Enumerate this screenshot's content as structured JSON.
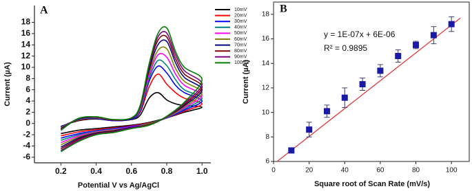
{
  "chart_data": [
    {
      "type": "line",
      "label": "A",
      "x_label": "Potential  V vs Ag/AgCl",
      "y_label": "Current (µA)",
      "x": [
        0.2,
        0.3,
        0.4,
        0.5,
        0.6,
        0.65,
        0.7,
        0.75,
        0.8,
        0.85,
        0.9,
        1.0,
        0.9,
        0.8,
        0.7,
        0.6,
        0.5,
        0.4,
        0.3,
        0.2
      ],
      "series": [
        {
          "name": "10mV",
          "color": "#000000",
          "values": [
            -0.5,
            0.5,
            0.8,
            0.5,
            0.7,
            1.5,
            4.5,
            5.5,
            4.2,
            3.5,
            3.2,
            2.9,
            2.0,
            1.0,
            0.2,
            -0.3,
            -0.6,
            -0.9,
            -1.2,
            -1.8
          ]
        },
        {
          "name": "20mV",
          "color": "#ff0000",
          "values": [
            -0.6,
            0.6,
            0.9,
            0.5,
            0.8,
            2.0,
            6.5,
            8.8,
            7.0,
            5.5,
            4.5,
            3.5,
            2.2,
            1.0,
            0.1,
            -0.4,
            -0.8,
            -1.1,
            -1.5,
            -2.2
          ]
        },
        {
          "name": "30mV",
          "color": "#0000ff",
          "values": [
            -0.6,
            0.7,
            0.9,
            0.5,
            0.8,
            2.2,
            7.5,
            10.2,
            9.0,
            6.8,
            5.5,
            4.0,
            2.4,
            1.0,
            0.0,
            -0.5,
            -0.9,
            -1.3,
            -1.8,
            -2.6
          ]
        },
        {
          "name": "40mV",
          "color": "#008080",
          "values": [
            -0.7,
            0.7,
            1.0,
            0.6,
            0.9,
            2.4,
            8.0,
            11.2,
            10.3,
            7.8,
            6.0,
            4.5,
            2.6,
            1.1,
            0.0,
            -0.6,
            -1.0,
            -1.4,
            -2.0,
            -3.0
          ]
        },
        {
          "name": "50mV",
          "color": "#ff00ff",
          "values": [
            -0.8,
            0.8,
            1.0,
            0.6,
            0.9,
            2.6,
            8.5,
            12.2,
            11.8,
            8.8,
            6.8,
            5.0,
            2.8,
            1.1,
            -0.1,
            -0.6,
            -1.1,
            -1.5,
            -2.2,
            -3.4
          ]
        },
        {
          "name": "60mV",
          "color": "#808000",
          "values": [
            -0.8,
            0.8,
            1.0,
            0.6,
            0.9,
            2.8,
            9.0,
            13.0,
            13.3,
            9.8,
            7.5,
            5.5,
            3.0,
            1.1,
            -0.1,
            -0.7,
            -1.2,
            -1.6,
            -2.4,
            -3.8
          ]
        },
        {
          "name": "70mV",
          "color": "#000080",
          "values": [
            -0.9,
            0.8,
            1.1,
            0.6,
            0.9,
            3.0,
            9.5,
            14.0,
            14.6,
            10.8,
            8.2,
            6.0,
            3.2,
            1.2,
            -0.2,
            -0.7,
            -1.3,
            -1.7,
            -2.6,
            -4.2
          ]
        },
        {
          "name": "80mV",
          "color": "#800000",
          "values": [
            -1.0,
            0.9,
            1.1,
            0.6,
            1.0,
            3.1,
            10.0,
            14.8,
            15.4,
            11.5,
            8.8,
            6.5,
            3.4,
            1.2,
            -0.2,
            -0.8,
            -1.4,
            -1.8,
            -2.8,
            -4.5
          ]
        },
        {
          "name": "90mV",
          "color": "#800080",
          "values": [
            -1.1,
            0.9,
            1.1,
            0.7,
            1.0,
            3.2,
            10.3,
            15.4,
            16.1,
            12.2,
            9.4,
            7.0,
            3.6,
            1.2,
            -0.3,
            -0.8,
            -1.5,
            -1.9,
            -3.0,
            -4.8
          ]
        },
        {
          "name": "100mV",
          "color": "#008000",
          "values": [
            -1.2,
            0.9,
            1.2,
            0.7,
            1.0,
            3.3,
            10.6,
            16.0,
            17.0,
            12.8,
            10.0,
            7.8,
            3.8,
            1.3,
            -0.3,
            -0.9,
            -1.6,
            -2.0,
            -3.2,
            -5.0
          ]
        }
      ],
      "xlim": [
        0.05,
        1.05
      ],
      "xticks": [
        0.2,
        0.4,
        0.6,
        0.8,
        {
          "value": 1,
          "label": "1.0"
        }
      ],
      "ylim": [
        -7,
        21
      ],
      "yticks": [
        -6,
        -4,
        -2,
        0,
        2,
        4,
        6,
        8,
        10,
        12,
        14,
        16,
        18
      ],
      "legend": "upper right"
    },
    {
      "type": "scatter",
      "label": "B",
      "x_label": "Square root of Scan Rate (mV/s)",
      "y_label": "Current (µA)",
      "x": [
        10,
        20,
        30,
        40,
        50,
        60,
        70,
        80,
        90,
        100
      ],
      "values": [
        6.9,
        8.6,
        10.1,
        11.2,
        12.3,
        13.4,
        14.6,
        15.5,
        16.3,
        17.2
      ],
      "errors": [
        0.2,
        0.6,
        0.5,
        0.8,
        0.5,
        0.5,
        0.5,
        0.3,
        0.7,
        0.6
      ],
      "color": "#1a1aa6",
      "fit": {
        "x": [
          2,
          105
        ],
        "values": [
          6.0,
          17.7
        ],
        "color": "#e03a3a"
      },
      "annotations": [
        "y = 1E-07x + 6E-06",
        "R² = 0.9895"
      ],
      "xlim": [
        0,
        110
      ],
      "xticks": [
        0,
        20,
        40,
        60,
        80,
        100
      ],
      "ylim": [
        6,
        19
      ],
      "yticks": [
        6,
        8,
        10,
        12,
        14,
        16,
        18
      ]
    }
  ]
}
